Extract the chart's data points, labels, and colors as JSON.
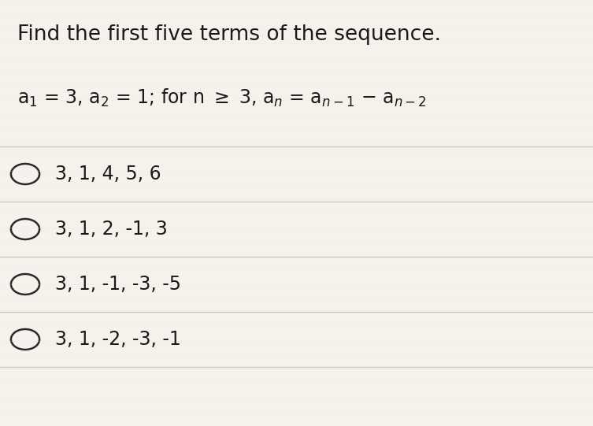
{
  "title": "Find the first five terms of the sequence.",
  "choices": [
    "3, 1, 4, 5, 6",
    "3, 1, 2, -1, 3",
    "3, 1, -1, -3, -5",
    "3, 1, -2, -3, -1"
  ],
  "bg_color": "#f5f2eb",
  "text_color": "#1a1a1a",
  "line_color": "#c8c8c8",
  "circle_color": "#2a2a2a",
  "title_fontsize": 19,
  "formula_fontsize": 17,
  "choice_fontsize": 17,
  "fig_width": 7.53,
  "fig_height": 5.41,
  "dpi": 100
}
